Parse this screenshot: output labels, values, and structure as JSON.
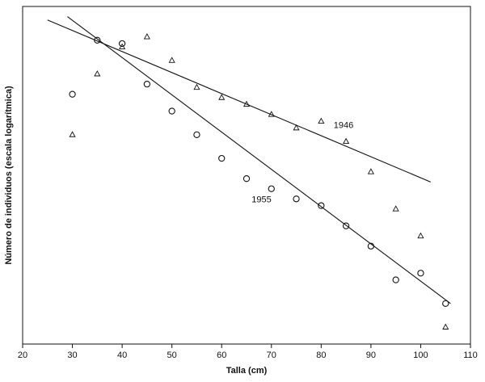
{
  "chart_data": {
    "type": "scatter",
    "title": "",
    "xlabel": "Talla (cm)",
    "ylabel": "Número de individuos (escala logarítmica)",
    "xlim": [
      20,
      110
    ],
    "ylim": [
      0,
      100
    ],
    "xticks": [
      20,
      30,
      40,
      50,
      60,
      70,
      80,
      90,
      100,
      110
    ],
    "yticks": [],
    "grid": false,
    "series": [
      {
        "name": "1946",
        "marker": "triangle",
        "points": [
          [
            30,
            62
          ],
          [
            35,
            80
          ],
          [
            40,
            88
          ],
          [
            45,
            91
          ],
          [
            50,
            84
          ],
          [
            55,
            76
          ],
          [
            60,
            73
          ],
          [
            65,
            71
          ],
          [
            70,
            68
          ],
          [
            75,
            64
          ],
          [
            80,
            66
          ],
          [
            85,
            60
          ],
          [
            90,
            51
          ],
          [
            95,
            40
          ],
          [
            100,
            32
          ],
          [
            105,
            5
          ]
        ],
        "fit_line": [
          [
            25,
            96
          ],
          [
            102,
            48
          ]
        ]
      },
      {
        "name": "1955",
        "marker": "circle",
        "points": [
          [
            30,
            74
          ],
          [
            35,
            90
          ],
          [
            40,
            89
          ],
          [
            45,
            77
          ],
          [
            50,
            69
          ],
          [
            55,
            62
          ],
          [
            60,
            55
          ],
          [
            65,
            49
          ],
          [
            70,
            46
          ],
          [
            75,
            43
          ],
          [
            80,
            41
          ],
          [
            85,
            35
          ],
          [
            90,
            29
          ],
          [
            95,
            19
          ],
          [
            100,
            21
          ],
          [
            105,
            12
          ]
        ],
        "fit_line": [
          [
            29,
            97
          ],
          [
            106,
            12
          ]
        ]
      }
    ],
    "annotations": [
      {
        "text": "1946",
        "x": 84.5,
        "y": 64
      },
      {
        "text": "1955",
        "x": 68,
        "y": 42
      }
    ]
  },
  "colors": {
    "ink": "#111111",
    "background": "#ffffff"
  }
}
